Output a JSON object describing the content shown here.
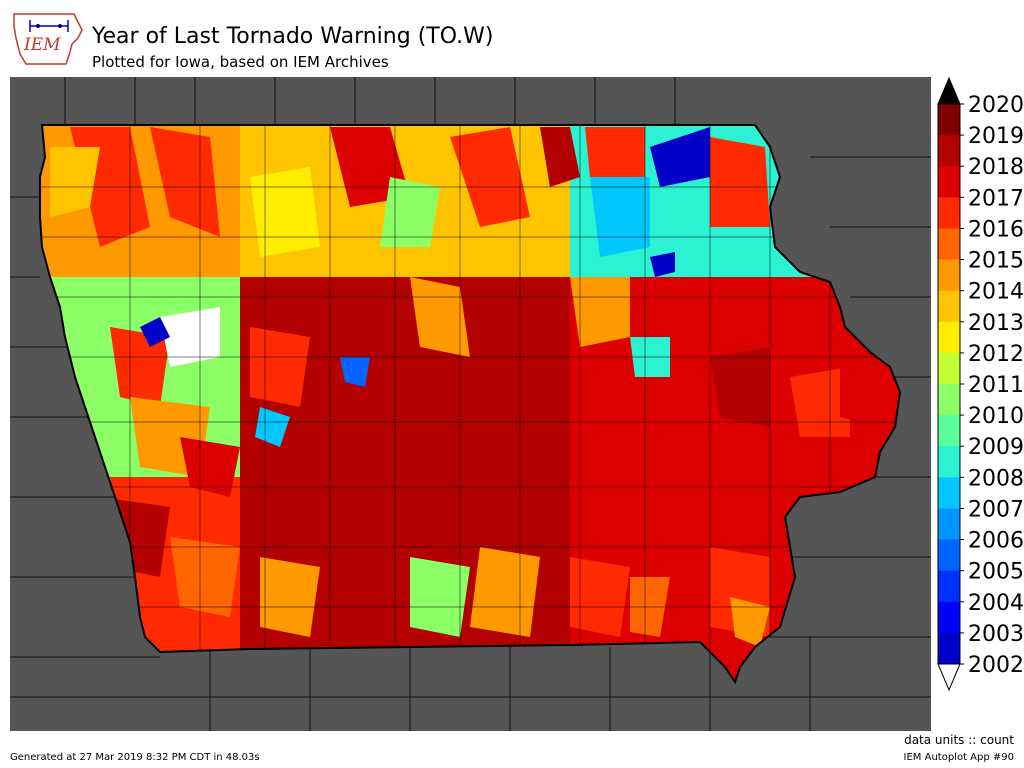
{
  "header": {
    "logo_text": "IEM",
    "title": "Year of Last Tornado Warning (TO.W)",
    "subtitle": "Plotted for Iowa, based on IEM Archives"
  },
  "legend": {
    "labels": [
      "2020",
      "2019",
      "2018",
      "2017",
      "2016",
      "2015",
      "2014",
      "2013",
      "2012",
      "2011",
      "2010",
      "2009",
      "2008",
      "2007",
      "2006",
      "2005",
      "2004",
      "2003",
      "2002"
    ],
    "colors": [
      "#800000",
      "#b30000",
      "#dd0000",
      "#ff2a00",
      "#ff6600",
      "#ff9900",
      "#ffc400",
      "#ffee00",
      "#c4ff33",
      "#8cff66",
      "#5aff9c",
      "#2af2d2",
      "#00c8ff",
      "#0096ff",
      "#0064ff",
      "#0032ff",
      "#0000ff",
      "#0000c8",
      "#000090"
    ],
    "over_color": "#000000",
    "under_color": "#ffffff"
  },
  "map": {
    "background_color": "#555555",
    "county_line_color": "#000000",
    "regions": [
      {
        "name": "northwest",
        "color": "#ff9900"
      },
      {
        "name": "north-central",
        "color": "#ffc400"
      },
      {
        "name": "northeast",
        "color": "#2af2d2"
      },
      {
        "name": "west-central",
        "color": "#8cff66"
      },
      {
        "name": "central",
        "color": "#b30000"
      },
      {
        "name": "east",
        "color": "#dd0000"
      },
      {
        "name": "southwest",
        "color": "#ff2a00"
      },
      {
        "name": "south-central",
        "color": "#b30000"
      },
      {
        "name": "southeast",
        "color": "#dd0000"
      }
    ]
  },
  "footer": {
    "units": "data units :: count",
    "generated": "Generated at 27 Mar 2019 8:32 PM CDT in 48.03s",
    "app": "IEM Autoplot App #90"
  }
}
